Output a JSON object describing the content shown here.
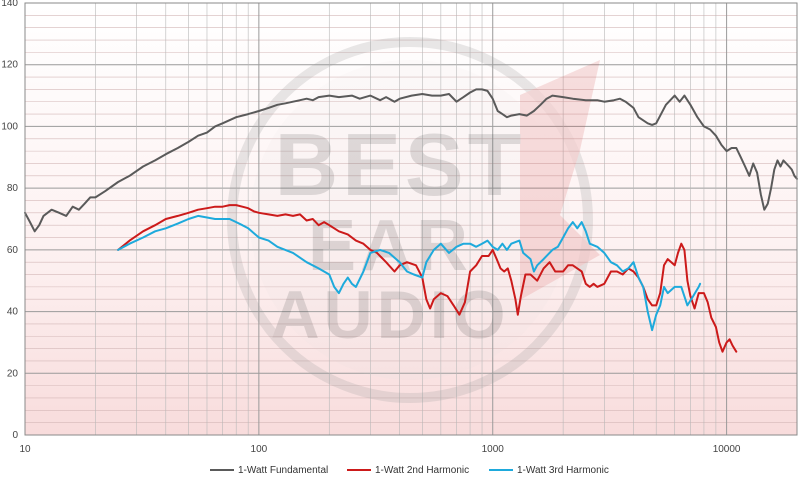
{
  "chart_data": {
    "type": "line",
    "title": "",
    "xlabel": "",
    "ylabel": "",
    "x_scale": "log",
    "xlim": [
      10,
      20000
    ],
    "ylim": [
      0,
      140
    ],
    "grid": true,
    "legend_position": "bottom",
    "watermark": "BEST EAR AUDIO",
    "x_tick_labels": [
      "10",
      "100",
      "1000",
      "10000"
    ],
    "y_tick_labels": [
      "0",
      "20",
      "40",
      "60",
      "80",
      "100",
      "120",
      "140"
    ],
    "series": [
      {
        "name": "1-Watt Fundamental",
        "color": "#5a5a5a",
        "points": [
          [
            10,
            72
          ],
          [
            10.5,
            69
          ],
          [
            11,
            66
          ],
          [
            11.5,
            68
          ],
          [
            12,
            71
          ],
          [
            13,
            73
          ],
          [
            14,
            72
          ],
          [
            15,
            71
          ],
          [
            16,
            74
          ],
          [
            17,
            73
          ],
          [
            18,
            75
          ],
          [
            19,
            77
          ],
          [
            20,
            77
          ],
          [
            22,
            79
          ],
          [
            25,
            82
          ],
          [
            28,
            84
          ],
          [
            32,
            87
          ],
          [
            36,
            89
          ],
          [
            40,
            91
          ],
          [
            45,
            93
          ],
          [
            50,
            95
          ],
          [
            55,
            97
          ],
          [
            60,
            98
          ],
          [
            65,
            100
          ],
          [
            70,
            101
          ],
          [
            80,
            103
          ],
          [
            90,
            104
          ],
          [
            100,
            105
          ],
          [
            110,
            106
          ],
          [
            120,
            107
          ],
          [
            130,
            107.5
          ],
          [
            140,
            108
          ],
          [
            150,
            108.5
          ],
          [
            160,
            109
          ],
          [
            170,
            108.5
          ],
          [
            180,
            109.5
          ],
          [
            200,
            110
          ],
          [
            220,
            109.5
          ],
          [
            250,
            110
          ],
          [
            270,
            109
          ],
          [
            300,
            110
          ],
          [
            330,
            108.5
          ],
          [
            350,
            109.5
          ],
          [
            380,
            108
          ],
          [
            400,
            109
          ],
          [
            450,
            110
          ],
          [
            500,
            110.5
          ],
          [
            550,
            110
          ],
          [
            600,
            110
          ],
          [
            650,
            110.5
          ],
          [
            700,
            108
          ],
          [
            750,
            109.5
          ],
          [
            800,
            111
          ],
          [
            850,
            112
          ],
          [
            900,
            112
          ],
          [
            950,
            111.5
          ],
          [
            1000,
            109
          ],
          [
            1050,
            105
          ],
          [
            1100,
            104
          ],
          [
            1150,
            103
          ],
          [
            1200,
            103.5
          ],
          [
            1300,
            104
          ],
          [
            1400,
            103.5
          ],
          [
            1500,
            105
          ],
          [
            1600,
            107
          ],
          [
            1700,
            109
          ],
          [
            1800,
            110
          ],
          [
            2000,
            109.5
          ],
          [
            2200,
            109
          ],
          [
            2500,
            108.5
          ],
          [
            2800,
            108.5
          ],
          [
            3000,
            108
          ],
          [
            3300,
            108.5
          ],
          [
            3500,
            109
          ],
          [
            3700,
            108
          ],
          [
            4000,
            106
          ],
          [
            4200,
            103
          ],
          [
            4400,
            102
          ],
          [
            4600,
            101
          ],
          [
            4800,
            100.5
          ],
          [
            5000,
            101
          ],
          [
            5500,
            107
          ],
          [
            6000,
            110
          ],
          [
            6300,
            108
          ],
          [
            6600,
            110
          ],
          [
            7000,
            107
          ],
          [
            7500,
            103
          ],
          [
            8000,
            100
          ],
          [
            8500,
            99
          ],
          [
            9000,
            97
          ],
          [
            9500,
            94
          ],
          [
            10000,
            92
          ],
          [
            10500,
            93
          ],
          [
            11000,
            93
          ],
          [
            11500,
            90
          ],
          [
            12000,
            87
          ],
          [
            12500,
            84
          ],
          [
            13000,
            88
          ],
          [
            13500,
            85
          ],
          [
            14000,
            78
          ],
          [
            14500,
            73
          ],
          [
            15000,
            75
          ],
          [
            15500,
            80
          ],
          [
            16000,
            86
          ],
          [
            16500,
            89
          ],
          [
            17000,
            87
          ],
          [
            17500,
            89
          ],
          [
            18000,
            88
          ],
          [
            18500,
            87
          ],
          [
            19000,
            86
          ],
          [
            19500,
            84
          ],
          [
            20000,
            83
          ]
        ]
      },
      {
        "name": "1-Watt 2nd Harmonic",
        "color": "#cc1a1a",
        "points": [
          [
            25,
            60
          ],
          [
            28,
            63
          ],
          [
            32,
            66
          ],
          [
            36,
            68
          ],
          [
            40,
            70
          ],
          [
            45,
            71
          ],
          [
            50,
            72
          ],
          [
            55,
            73
          ],
          [
            60,
            73.5
          ],
          [
            65,
            74
          ],
          [
            70,
            74
          ],
          [
            75,
            74.5
          ],
          [
            80,
            74.5
          ],
          [
            85,
            74
          ],
          [
            90,
            73.5
          ],
          [
            95,
            72.5
          ],
          [
            100,
            72
          ],
          [
            110,
            71.5
          ],
          [
            120,
            71
          ],
          [
            130,
            71.5
          ],
          [
            140,
            71
          ],
          [
            150,
            71.5
          ],
          [
            160,
            69.5
          ],
          [
            170,
            70
          ],
          [
            180,
            68
          ],
          [
            190,
            69
          ],
          [
            200,
            68
          ],
          [
            220,
            66
          ],
          [
            240,
            65
          ],
          [
            260,
            63
          ],
          [
            280,
            62
          ],
          [
            300,
            60
          ],
          [
            320,
            59
          ],
          [
            350,
            56
          ],
          [
            380,
            53
          ],
          [
            400,
            55
          ],
          [
            430,
            56
          ],
          [
            470,
            55
          ],
          [
            500,
            51
          ],
          [
            520,
            44
          ],
          [
            540,
            41
          ],
          [
            560,
            44
          ],
          [
            600,
            46
          ],
          [
            640,
            45
          ],
          [
            680,
            42
          ],
          [
            720,
            39
          ],
          [
            760,
            43
          ],
          [
            800,
            53
          ],
          [
            850,
            55
          ],
          [
            900,
            58
          ],
          [
            960,
            58
          ],
          [
            1000,
            60
          ],
          [
            1040,
            57
          ],
          [
            1080,
            54
          ],
          [
            1120,
            53
          ],
          [
            1160,
            54
          ],
          [
            1200,
            50
          ],
          [
            1250,
            44
          ],
          [
            1280,
            39
          ],
          [
            1320,
            45
          ],
          [
            1380,
            52
          ],
          [
            1450,
            52
          ],
          [
            1550,
            50
          ],
          [
            1650,
            54
          ],
          [
            1750,
            56
          ],
          [
            1850,
            53
          ],
          [
            2000,
            53
          ],
          [
            2100,
            55
          ],
          [
            2200,
            55
          ],
          [
            2300,
            54
          ],
          [
            2400,
            53
          ],
          [
            2500,
            49
          ],
          [
            2600,
            48
          ],
          [
            2700,
            49
          ],
          [
            2800,
            48
          ],
          [
            3000,
            49
          ],
          [
            3200,
            53
          ],
          [
            3400,
            53
          ],
          [
            3600,
            52
          ],
          [
            3800,
            54
          ],
          [
            4000,
            53
          ],
          [
            4200,
            51
          ],
          [
            4400,
            48
          ],
          [
            4600,
            44
          ],
          [
            4800,
            42
          ],
          [
            5000,
            42
          ],
          [
            5200,
            46
          ],
          [
            5400,
            55
          ],
          [
            5600,
            57
          ],
          [
            5800,
            56
          ],
          [
            6000,
            55
          ],
          [
            6200,
            59
          ],
          [
            6400,
            62
          ],
          [
            6600,
            60
          ],
          [
            6800,
            50
          ],
          [
            7000,
            45
          ],
          [
            7300,
            41
          ],
          [
            7600,
            46
          ],
          [
            8000,
            46
          ],
          [
            8300,
            43
          ],
          [
            8600,
            38
          ],
          [
            9000,
            35
          ],
          [
            9300,
            30
          ],
          [
            9600,
            27
          ],
          [
            10000,
            30
          ],
          [
            10300,
            31
          ],
          [
            10600,
            29
          ],
          [
            11000,
            27
          ]
        ]
      },
      {
        "name": "1-Watt 3rd Harmonic",
        "color": "#1eaadc",
        "points": [
          [
            25,
            60
          ],
          [
            28,
            62
          ],
          [
            32,
            64
          ],
          [
            36,
            66
          ],
          [
            40,
            67
          ],
          [
            45,
            68.5
          ],
          [
            50,
            70
          ],
          [
            55,
            71
          ],
          [
            60,
            70.5
          ],
          [
            65,
            70
          ],
          [
            70,
            70
          ],
          [
            75,
            70
          ],
          [
            80,
            69
          ],
          [
            85,
            68
          ],
          [
            90,
            67
          ],
          [
            100,
            64
          ],
          [
            110,
            63
          ],
          [
            120,
            61
          ],
          [
            140,
            59
          ],
          [
            160,
            56
          ],
          [
            180,
            54
          ],
          [
            200,
            52
          ],
          [
            210,
            48
          ],
          [
            220,
            46
          ],
          [
            230,
            49
          ],
          [
            240,
            51
          ],
          [
            250,
            49
          ],
          [
            260,
            48
          ],
          [
            280,
            53
          ],
          [
            300,
            59
          ],
          [
            330,
            60
          ],
          [
            360,
            59
          ],
          [
            400,
            56
          ],
          [
            430,
            53
          ],
          [
            460,
            52
          ],
          [
            500,
            51
          ],
          [
            520,
            56
          ],
          [
            560,
            60
          ],
          [
            600,
            62
          ],
          [
            650,
            59
          ],
          [
            700,
            61
          ],
          [
            750,
            62
          ],
          [
            800,
            62
          ],
          [
            850,
            61
          ],
          [
            900,
            62
          ],
          [
            950,
            63
          ],
          [
            1000,
            61
          ],
          [
            1050,
            60
          ],
          [
            1100,
            62
          ],
          [
            1150,
            60
          ],
          [
            1200,
            62
          ],
          [
            1300,
            63
          ],
          [
            1350,
            59
          ],
          [
            1450,
            57
          ],
          [
            1500,
            53
          ],
          [
            1550,
            55
          ],
          [
            1650,
            57
          ],
          [
            1800,
            60
          ],
          [
            1900,
            61
          ],
          [
            2000,
            64
          ],
          [
            2100,
            67
          ],
          [
            2200,
            69
          ],
          [
            2300,
            67
          ],
          [
            2400,
            69
          ],
          [
            2500,
            66
          ],
          [
            2600,
            62
          ],
          [
            2800,
            61
          ],
          [
            3000,
            59
          ],
          [
            3200,
            56
          ],
          [
            3400,
            55
          ],
          [
            3600,
            53
          ],
          [
            3800,
            54
          ],
          [
            4000,
            56
          ],
          [
            4200,
            51
          ],
          [
            4400,
            48
          ],
          [
            4600,
            40
          ],
          [
            4800,
            34
          ],
          [
            5000,
            39
          ],
          [
            5200,
            42
          ],
          [
            5400,
            48
          ],
          [
            5600,
            46
          ],
          [
            6000,
            48
          ],
          [
            6400,
            48
          ],
          [
            6800,
            42
          ],
          [
            7200,
            45
          ],
          [
            7600,
            48
          ],
          [
            7700,
            49
          ]
        ]
      }
    ]
  }
}
